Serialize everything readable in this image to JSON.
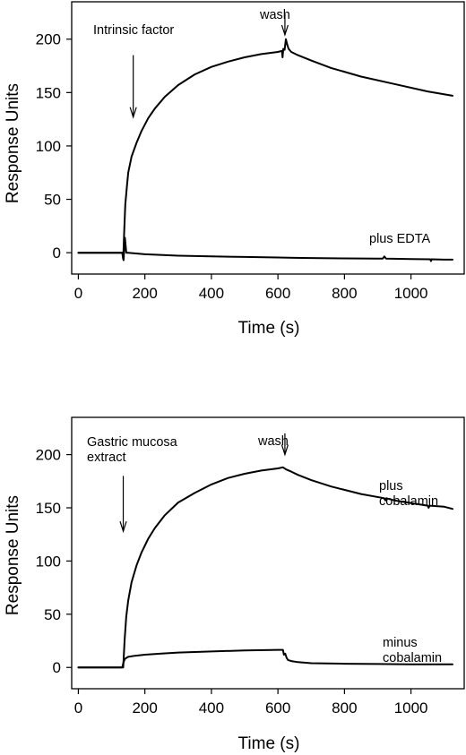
{
  "chart_data": [
    {
      "type": "line",
      "xlabel": "Time (s)",
      "ylabel": "Response Units",
      "xlim": [
        -20,
        1160
      ],
      "ylim": [
        -20,
        235
      ],
      "x_ticks": [
        0,
        200,
        400,
        600,
        800,
        1000
      ],
      "y_ticks": [
        0,
        50,
        100,
        150,
        200
      ],
      "grid": false,
      "series": [
        {
          "x": [
            0,
            120,
            132,
            135,
            138,
            141,
            146,
            150,
            160,
            175,
            190,
            210,
            230,
            260,
            300,
            350,
            400,
            450,
            500,
            550,
            600,
            612,
            614,
            616,
            620,
            624,
            628,
            632,
            640,
            660,
            700,
            760,
            850,
            950,
            1050,
            1125
          ],
          "y": [
            0,
            0,
            0,
            -6,
            20,
            45,
            62,
            75,
            90,
            103,
            114,
            126,
            135,
            146,
            157,
            167,
            174,
            179,
            183,
            186,
            188,
            189,
            183,
            191,
            190,
            200,
            195,
            191,
            188,
            185,
            180,
            173,
            165,
            158,
            151,
            147
          ]
        },
        {
          "x": [
            0,
            120,
            134,
            136,
            140,
            144,
            150,
            200,
            300,
            400,
            500,
            600,
            650,
            700,
            800,
            900,
            915,
            920,
            925,
            1000,
            1058,
            1060,
            1062,
            1100,
            1125
          ],
          "y": [
            0,
            0,
            0,
            -7,
            14,
            0,
            0,
            -1.5,
            -2.8,
            -3.5,
            -4,
            -4.5,
            -4.8,
            -5,
            -5.3,
            -5.6,
            -5.6,
            -3.5,
            -5.6,
            -6,
            -6.2,
            -7.8,
            -6.2,
            -6.5,
            -6.5
          ]
        }
      ],
      "annotations": [
        {
          "text": "Intrinsic factor",
          "arrow_x": 165,
          "arrow_y_from": 185,
          "arrow_y_to": 127
        },
        {
          "text": "wash",
          "arrow_x": 621,
          "arrow_y_from": 224,
          "arrow_y_to": 204
        },
        {
          "text": "plus EDTA"
        }
      ]
    },
    {
      "type": "line",
      "xlabel": "Time (s)",
      "ylabel": "Response Units",
      "xlim": [
        -20,
        1160
      ],
      "ylim": [
        -20,
        235
      ],
      "x_ticks": [
        0,
        200,
        400,
        600,
        800,
        1000
      ],
      "y_ticks": [
        0,
        50,
        100,
        150,
        200
      ],
      "grid": false,
      "series": [
        {
          "x": [
            0,
            125,
            135,
            139,
            144,
            150,
            160,
            175,
            190,
            210,
            230,
            260,
            300,
            350,
            400,
            450,
            500,
            550,
            600,
            615,
            625,
            640,
            660,
            700,
            760,
            850,
            920,
            923,
            926,
            950,
            1050,
            1053,
            1056,
            1100,
            1125
          ],
          "y": [
            0,
            0,
            0,
            25,
            48,
            63,
            80,
            96,
            108,
            121,
            131,
            143,
            155,
            164,
            172,
            178,
            182,
            185,
            187,
            188,
            186,
            184,
            181,
            176,
            170,
            163,
            159,
            157,
            159,
            157,
            152,
            150,
            152,
            151,
            149
          ]
        },
        {
          "x": [
            0,
            125,
            132,
            136,
            140,
            145,
            150,
            170,
            200,
            250,
            300,
            400,
            500,
            600,
            615,
            618,
            622,
            626,
            630,
            640,
            660,
            700,
            800,
            900,
            1000,
            1125
          ],
          "y": [
            0,
            0,
            0,
            5,
            8,
            9,
            10,
            11,
            12,
            13,
            14,
            15,
            16,
            16.5,
            16.5,
            12,
            13,
            9,
            7,
            6,
            5,
            4,
            3.5,
            3.2,
            3,
            3
          ]
        }
      ],
      "annotations": [
        {
          "text": "Gastric mucosa"
        },
        {
          "text": "extract",
          "arrow_x": 135,
          "arrow_y_from": 180,
          "arrow_y_to": 128
        },
        {
          "text": "wash",
          "arrow_x": 621,
          "arrow_y_from": 220,
          "arrow_y_to": 200
        },
        {
          "text": "plus"
        },
        {
          "text": "cobalamin"
        },
        {
          "text": "minus"
        },
        {
          "text": "cobalamin"
        }
      ]
    }
  ]
}
